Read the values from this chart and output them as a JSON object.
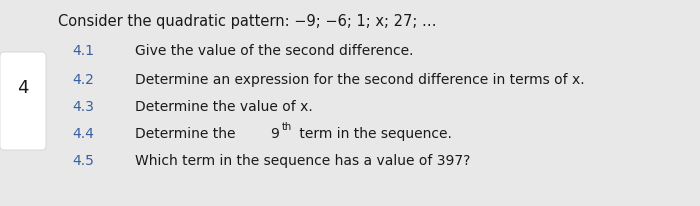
{
  "background_color": "#e8e8e8",
  "white_box_color": "#ffffff",
  "question_number": "4",
  "intro_line1": "Consider the quadratic pattern: −9; −6; 1; x; 27; …",
  "sub_questions": [
    {
      "number": "4.1",
      "text": "Give the value of the second difference."
    },
    {
      "number": "4.2",
      "text": "Determine an expression for the second difference in terms of x."
    },
    {
      "number": "4.3",
      "text": "Determine the value of x."
    },
    {
      "number": "4.4",
      "text_before": "Determine the ",
      "base": "9",
      "sup": "th",
      "text_after": " term in the sequence."
    },
    {
      "number": "4.5",
      "text": "Which term in the sequence has a value of 397?"
    }
  ],
  "text_color": "#1a1a1a",
  "number_color": "#3a5fa0",
  "intro_color": "#1a1a1a",
  "font_size_intro": 10.5,
  "font_size_sub": 10.0,
  "font_size_qnum": 13.0
}
